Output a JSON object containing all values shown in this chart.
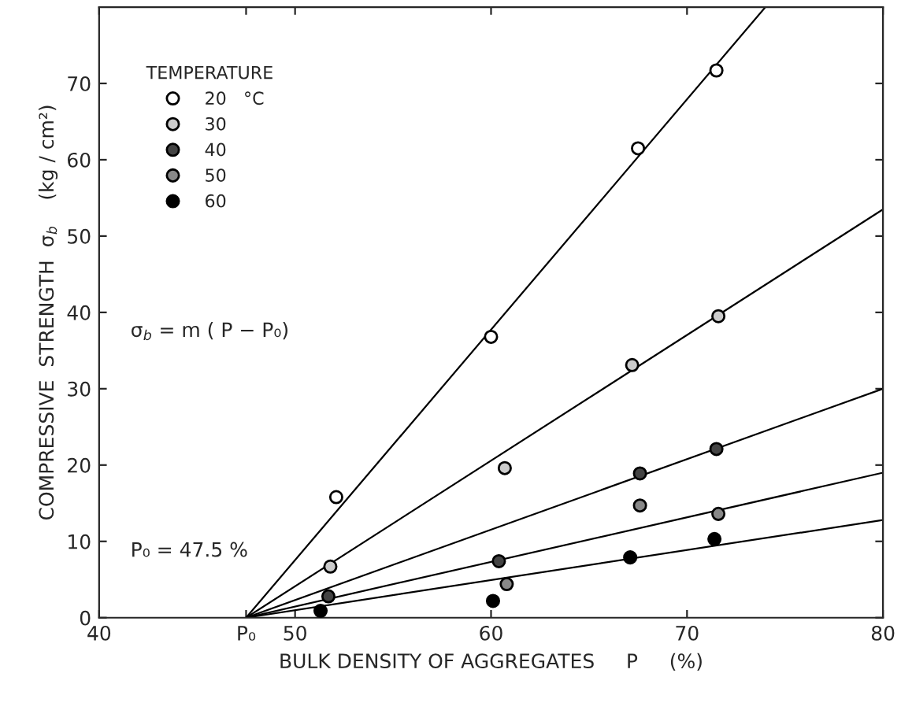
{
  "chart_data": {
    "type": "scatter",
    "xlabel": "BULK DENSITY OF AGGREGATES     P     (%)",
    "ylabel": "COMPRESSIVE  STRENGTH  σ$_{b}$    (kg / cm²)",
    "legend_title": "TEMPERATURE",
    "legend": "top left",
    "grid": false,
    "xlim": [
      40,
      80
    ],
    "xticks": [
      40,
      {
        "value": 47.5,
        "label": "P₀"
      },
      50,
      60,
      70,
      {
        "value": 80,
        "label": "80"
      }
    ],
    "ylim": [
      0,
      80
    ],
    "yticks": [
      0,
      10,
      20,
      30,
      40,
      50,
      60,
      70
    ],
    "series": [
      {
        "name": "20   °C",
        "color": "#ffffff",
        "marker": "circle",
        "x": [
          52.1,
          60,
          67.5,
          71.5
        ],
        "values": [
          15.8,
          36.8,
          61.5,
          71.7
        ]
      },
      {
        "name": "30",
        "color": "#cccccc",
        "marker": "circle",
        "x": [
          51.8,
          60.7,
          67.2,
          71.6
        ],
        "values": [
          6.7,
          19.6,
          33.1,
          39.5
        ]
      },
      {
        "name": "40",
        "color": "#444444",
        "marker": "circle",
        "x": [
          51.7,
          60.4,
          67.6,
          71.5
        ],
        "values": [
          2.8,
          7.4,
          18.9,
          22.1
        ]
      },
      {
        "name": "50",
        "color": "#888888",
        "marker": "circle",
        "x": [
          60.8,
          67.6,
          71.6
        ],
        "values": [
          4.4,
          14.7,
          13.6
        ]
      },
      {
        "name": "60",
        "color": "#000000",
        "marker": "circle",
        "x": [
          51.3,
          60.1,
          67.1,
          71.4
        ],
        "values": [
          0.9,
          2.2,
          7.9,
          10.3
        ]
      },
      {
        "type": "line",
        "color": "#000000",
        "x": [
          47.5,
          74
        ],
        "values": [
          0,
          80
        ]
      },
      {
        "type": "line",
        "color": "#000000",
        "x": [
          47.5,
          80
        ],
        "values": [
          0,
          53.5
        ]
      },
      {
        "type": "line",
        "color": "#000000",
        "x": [
          47.5,
          80
        ],
        "values": [
          0,
          30
        ]
      },
      {
        "type": "line",
        "color": "#000000",
        "x": [
          47.5,
          80
        ],
        "values": [
          0,
          19
        ]
      },
      {
        "type": "line",
        "color": "#000000",
        "x": [
          47.5,
          80
        ],
        "values": [
          0,
          12.8
        ]
      }
    ],
    "annotations": [
      "σ$_{b}$ = m ( P − P₀)",
      "P₀ = 47.5 %"
    ]
  }
}
